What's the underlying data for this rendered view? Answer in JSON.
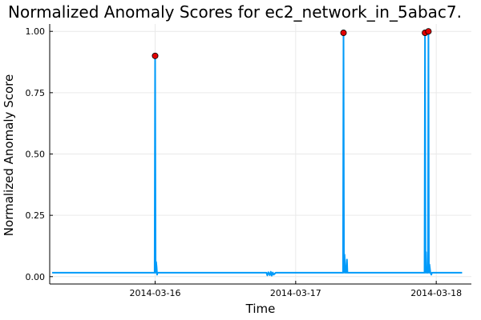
{
  "chart_data": {
    "type": "line",
    "title": "Normalized Anomaly Scores for ec2_network_in_5abac7.",
    "xlabel": "Time",
    "ylabel": "Normalized Anomaly Score",
    "grid": true,
    "legend": "none",
    "colors": {
      "line": "#009af9",
      "anomaly_marker": "#e20000",
      "marker_edge": "#000000"
    },
    "xlim": [
      "2014-03-15 06:00",
      "2014-03-18 06:00"
    ],
    "ylim": [
      -0.03,
      1.03
    ],
    "x_ticks": [
      "2014-03-16",
      "2014-03-17",
      "2014-03-18"
    ],
    "y_ticks": [
      {
        "value": 0.0,
        "label": "0.00"
      },
      {
        "value": 0.25,
        "label": "0.25"
      },
      {
        "value": 0.5,
        "label": "0.50"
      },
      {
        "value": 0.75,
        "label": "0.75"
      },
      {
        "value": 1.0,
        "label": "1.00"
      }
    ],
    "series": [
      {
        "x": [
          "2014-03-15 06:25",
          "2014-03-15 12:00",
          "2014-03-15 18:00",
          "2014-03-15 23:50",
          "2014-03-15 23:55",
          "2014-03-16 00:00",
          "2014-03-16 00:05",
          "2014-03-16 00:10",
          "2014-03-16 00:15",
          "2014-03-16 00:20",
          "2014-03-16 00:25",
          "2014-03-16 01:00",
          "2014-03-16 06:00",
          "2014-03-16 12:00",
          "2014-03-16 18:00",
          "2014-03-16 19:00",
          "2014-03-16 19:10",
          "2014-03-16 19:20",
          "2014-03-16 19:35",
          "2014-03-16 19:45",
          "2014-03-16 19:55",
          "2014-03-16 20:05",
          "2014-03-16 20:15",
          "2014-03-16 20:25",
          "2014-03-16 20:35",
          "2014-03-16 20:45",
          "2014-03-16 21:00",
          "2014-03-17 00:00",
          "2014-03-17 06:00",
          "2014-03-17 08:00",
          "2014-03-17 08:05",
          "2014-03-17 08:10",
          "2014-03-17 08:15",
          "2014-03-17 08:20",
          "2014-03-17 08:30",
          "2014-03-17 08:40",
          "2014-03-17 08:45",
          "2014-03-17 08:50",
          "2014-03-17 09:00",
          "2014-03-17 09:05",
          "2014-03-17 09:10",
          "2014-03-17 09:20",
          "2014-03-17 12:00",
          "2014-03-17 18:00",
          "2014-03-17 21:55",
          "2014-03-17 22:00",
          "2014-03-17 22:05",
          "2014-03-17 22:10",
          "2014-03-17 22:15",
          "2014-03-17 22:20",
          "2014-03-17 22:25",
          "2014-03-17 22:35",
          "2014-03-17 22:40",
          "2014-03-17 22:45",
          "2014-03-17 22:50",
          "2014-03-17 23:00",
          "2014-03-17 23:10",
          "2014-03-17 23:15",
          "2014-03-17 23:20",
          "2014-03-18 00:00",
          "2014-03-18 04:25"
        ],
        "y": [
          0.016,
          0.016,
          0.016,
          0.016,
          0.016,
          0.9,
          0.016,
          0.06,
          0.04,
          0.008,
          0.016,
          0.016,
          0.016,
          0.016,
          0.016,
          0.016,
          0.005,
          0.018,
          0.006,
          0.02,
          0.004,
          0.017,
          0.008,
          0.012,
          0.016,
          0.016,
          0.016,
          0.016,
          0.016,
          0.016,
          0.016,
          0.994,
          0.016,
          0.09,
          0.016,
          0.016,
          0.07,
          0.016,
          0.016,
          0.016,
          0.016,
          0.016,
          0.016,
          0.016,
          0.016,
          0.016,
          0.994,
          0.016,
          0.1,
          0.016,
          0.016,
          0.016,
          1.0,
          0.016,
          0.05,
          0.016,
          0.008,
          0.016,
          0.016,
          0.016,
          0.016
        ]
      }
    ],
    "anomalies": [
      {
        "x": "2014-03-16 00:00",
        "y": 0.9
      },
      {
        "x": "2014-03-17 08:10",
        "y": 0.994
      },
      {
        "x": "2014-03-17 22:05",
        "y": 0.994
      },
      {
        "x": "2014-03-17 22:40",
        "y": 1.0
      }
    ]
  }
}
